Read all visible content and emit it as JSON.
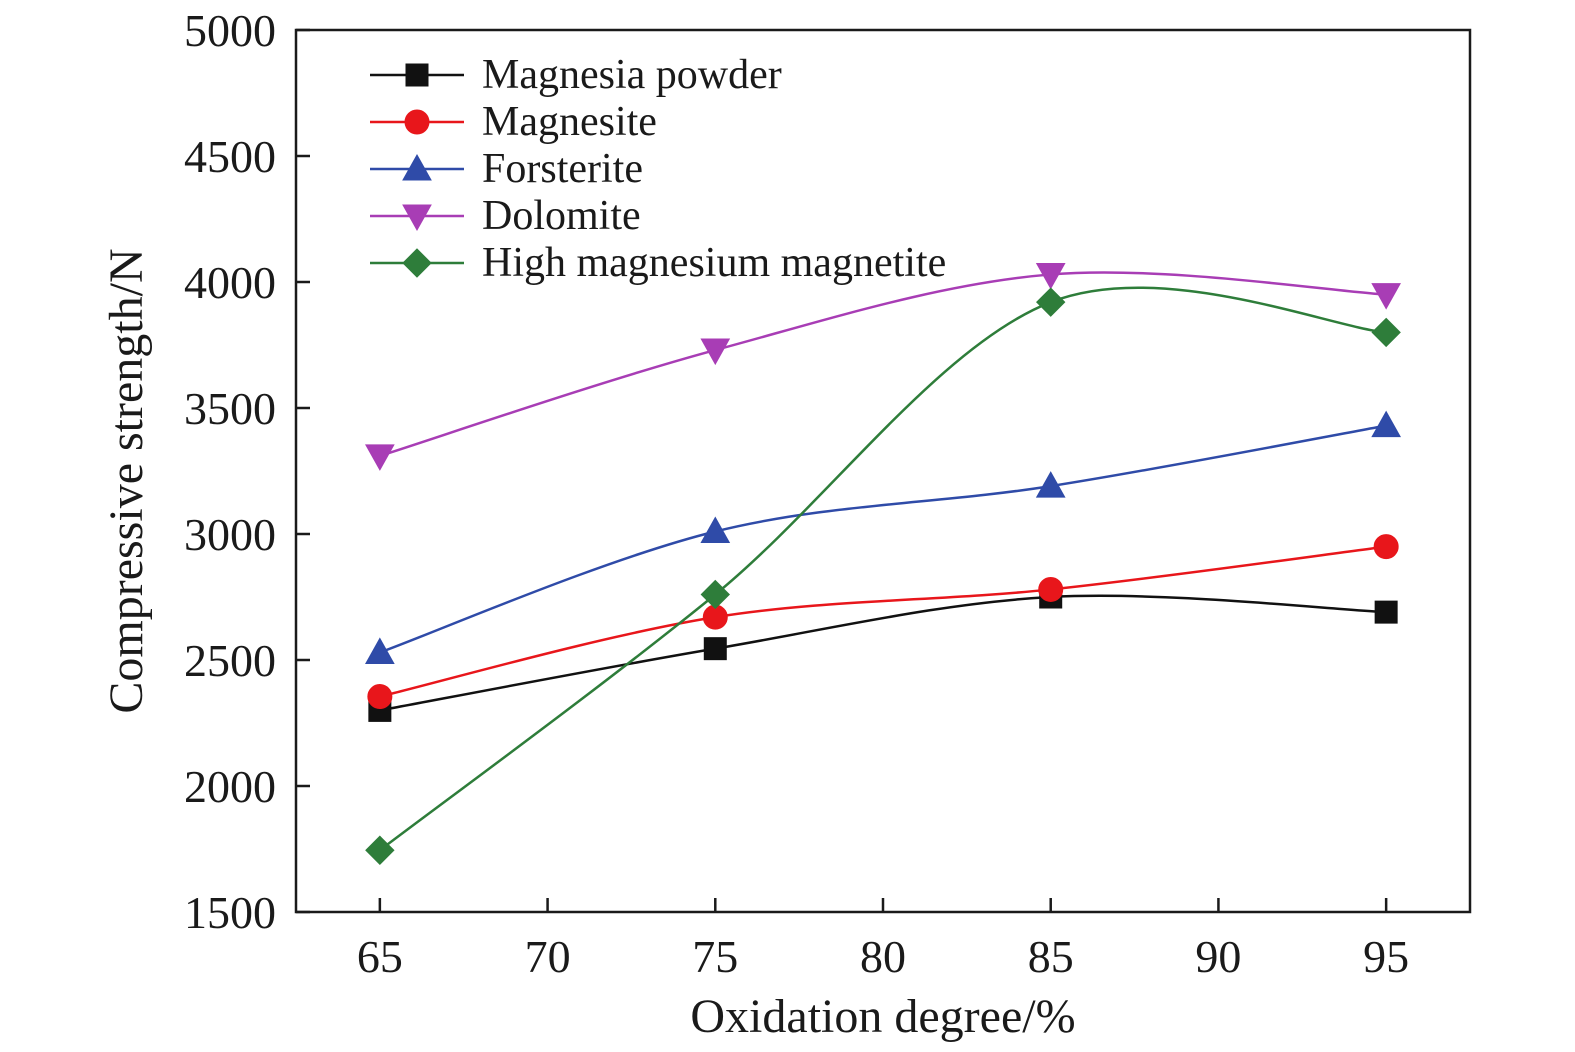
{
  "chart_data": {
    "type": "line",
    "xlabel": "Oxidation degree/%",
    "ylabel": "Compressive strength/N",
    "xlim": [
      62.5,
      97.5
    ],
    "ylim": [
      1500,
      5000
    ],
    "x_ticks": [
      65,
      70,
      75,
      80,
      85,
      90,
      95
    ],
    "y_ticks": [
      1500,
      2000,
      2500,
      3000,
      3500,
      4000,
      4500,
      5000
    ],
    "x_tick_labels": [
      "65",
      "70",
      "75",
      "80",
      "85",
      "90",
      "95"
    ],
    "y_tick_labels": [
      "1500",
      "2000",
      "2500",
      "3000",
      "3500",
      "4000",
      "4500",
      "5000"
    ],
    "x": [
      65,
      75,
      85,
      95
    ],
    "grid": false,
    "legend_position": "top-left",
    "series": [
      {
        "name": "Magnesia powder",
        "values": [
          2300,
          2545,
          2750,
          2690
        ],
        "color": "#111111",
        "marker": "square"
      },
      {
        "name": "Magnesite",
        "values": [
          2355,
          2670,
          2780,
          2950
        ],
        "color": "#e8161b",
        "marker": "circle"
      },
      {
        "name": "Forsterite",
        "values": [
          2530,
          3010,
          3190,
          3430
        ],
        "color": "#2f4ba8",
        "marker": "triangle-up"
      },
      {
        "name": "Dolomite",
        "values": [
          3310,
          3730,
          4030,
          3950
        ],
        "color": "#a83db5",
        "marker": "triangle-down"
      },
      {
        "name": "High magnesium magnetite",
        "values": [
          1745,
          2760,
          3920,
          3800
        ],
        "color": "#2e7d3a",
        "marker": "diamond"
      }
    ]
  }
}
